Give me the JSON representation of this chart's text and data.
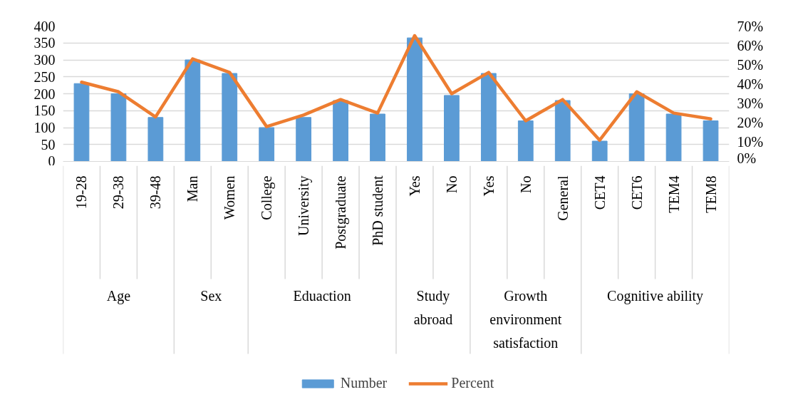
{
  "chart_data": {
    "type": "bar",
    "categories": [
      "19-28",
      "29-38",
      "39-48",
      "Man",
      "Women",
      "College",
      "University",
      "Postgraduate",
      "PhD student",
      "Yes",
      "No",
      "Yes",
      "No",
      "General",
      "CET4",
      "CET6",
      "TEM4",
      "TEM8"
    ],
    "annotations": [
      "Age",
      "Sex",
      "Eduaction",
      "Study abroad",
      "Growth environment satisfaction",
      "Cognitive ability"
    ],
    "series": [
      {
        "name": "Number",
        "color": "#5b9bd5",
        "values": [
          230,
          200,
          130,
          300,
          260,
          100,
          130,
          180,
          140,
          365,
          195,
          260,
          120,
          180,
          60,
          200,
          140,
          120
        ]
      },
      {
        "name": "Percent",
        "type": "line",
        "axis": "y2",
        "color": "#ed7d31",
        "values": [
          41,
          36,
          23,
          53,
          46,
          18,
          24,
          32,
          25,
          65,
          35,
          46,
          21,
          32,
          11,
          36,
          25,
          22
        ]
      }
    ],
    "ylim": [
      0,
      400
    ],
    "yticks": [
      0,
      50,
      100,
      150,
      200,
      250,
      300,
      350,
      400
    ],
    "y2lim": [
      0,
      70
    ],
    "y2ticks": [
      {
        "value": 0,
        "label": "0%"
      },
      {
        "value": 10,
        "label": "10%"
      },
      {
        "value": 20,
        "label": "20%"
      },
      {
        "value": 30,
        "label": "30%"
      },
      {
        "value": 40,
        "label": "40%"
      },
      {
        "value": 50,
        "label": "50%"
      },
      {
        "value": 60,
        "label": "60%"
      },
      {
        "value": 70,
        "label": "70%"
      }
    ],
    "grid": "y",
    "legend": "bottom",
    "marker": "none",
    "line_style": "solid"
  }
}
